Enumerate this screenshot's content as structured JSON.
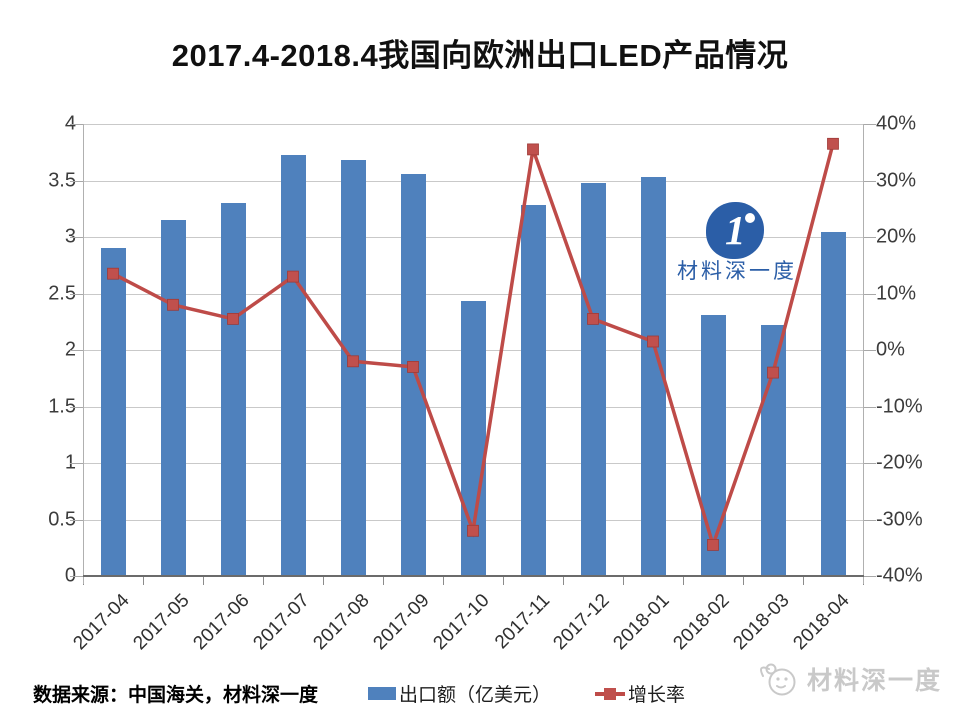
{
  "title": "2017.4-2018.4我国向欧洲出口LED产品情况",
  "chart_data": {
    "type": "bar+line combo",
    "categories": [
      "2017-04",
      "2017-05",
      "2017-06",
      "2017-07",
      "2017-08",
      "2017-09",
      "2017-10",
      "2017-11",
      "2017-12",
      "2018-01",
      "2018-02",
      "2018-03",
      "2018-04"
    ],
    "series": [
      {
        "name": "出口额（亿美元）",
        "type": "bar",
        "axis": "left",
        "color": "#4F81BD",
        "values": [
          2.9,
          3.15,
          3.3,
          3.73,
          3.68,
          3.56,
          2.43,
          3.28,
          3.48,
          3.53,
          2.31,
          2.22,
          3.04
        ]
      },
      {
        "name": "增长率",
        "type": "line",
        "axis": "right",
        "color": "#BE4B48",
        "marker_color": "#C0504D",
        "marker_shape": "square",
        "values": [
          13.5,
          8,
          5.5,
          13,
          -2,
          -3,
          -32,
          35.5,
          5.5,
          1.5,
          -34.5,
          -4,
          36.5
        ]
      }
    ],
    "left_axis": {
      "min": 0,
      "max": 4,
      "step": 0.5,
      "ticks_top_to_bottom": [
        "4",
        "3.5",
        "3",
        "2.5",
        "2",
        "1.5",
        "1",
        "0.5",
        "0"
      ]
    },
    "right_axis": {
      "min": -40,
      "max": 40,
      "step": 10,
      "unit": "%",
      "ticks_top_to_bottom": [
        "40%",
        "30%",
        "20%",
        "10%",
        "0%",
        "-10%",
        "-20%",
        "-30%",
        "-40%"
      ]
    },
    "grid": true,
    "legend_position": "bottom",
    "x_label_rotation_deg": -45
  },
  "watermark": {
    "badge_glyph": "1",
    "text": "材料深一度"
  },
  "footer": {
    "source": "数据来源：中国海关，材料深一度",
    "brand": "材料深一度"
  },
  "colors": {
    "bar": "#4F81BD",
    "line": "#BE4B48",
    "marker": "#C0504D",
    "watermark_blue": "#2B5EA7",
    "brand_gray": "#c9c9c9",
    "gridline": "#c9c9c9"
  }
}
